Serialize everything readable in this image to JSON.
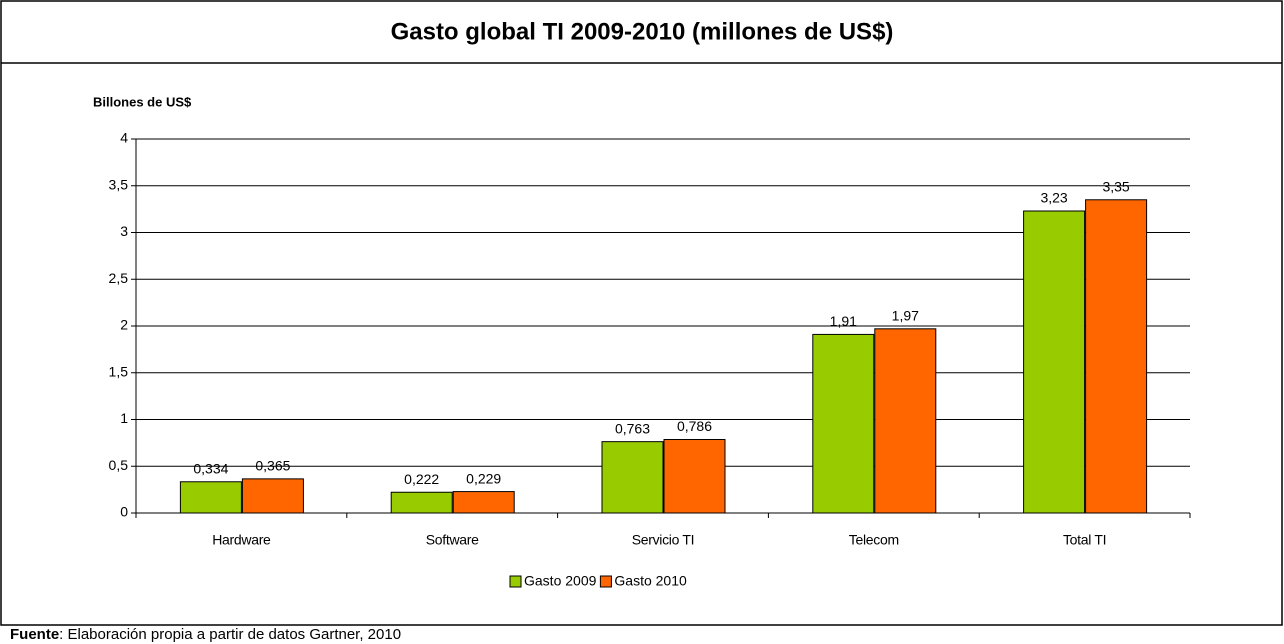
{
  "chart_data": {
    "type": "bar",
    "title": "Gasto global TI 2009-2010 (millones de US$)",
    "y_label": "Billones de US$",
    "categories": [
      "Hardware",
      "Software",
      "Servicio TI",
      "Telecom",
      "Total TI"
    ],
    "series": [
      {
        "name": "Gasto 2009",
        "color": "#99cc00",
        "values": [
          0.334,
          0.222,
          0.763,
          1.91,
          3.23
        ],
        "value_labels": [
          "0,334",
          "0,222",
          "0,763",
          "1,91",
          "3,23"
        ]
      },
      {
        "name": "Gasto 2010",
        "color": "#ff6600",
        "values": [
          0.365,
          0.229,
          0.786,
          1.97,
          3.35
        ],
        "value_labels": [
          "0,365",
          "0,229",
          "0,786",
          "1,97",
          "3,35"
        ]
      }
    ],
    "ylim": [
      0,
      4
    ],
    "yticks": [
      0,
      {
        "value": 0.5,
        "label": "0,5"
      },
      1,
      {
        "value": 1.5,
        "label": "1,5"
      },
      2,
      {
        "value": 2.5,
        "label": "2,5"
      },
      3,
      {
        "value": 3.5,
        "label": "3,5"
      },
      4
    ],
    "grid": true,
    "legend": "bottom",
    "source": {
      "label": "Fuente",
      "text": ": Elaboración propia a partir de datos Gartner, 2010"
    }
  }
}
